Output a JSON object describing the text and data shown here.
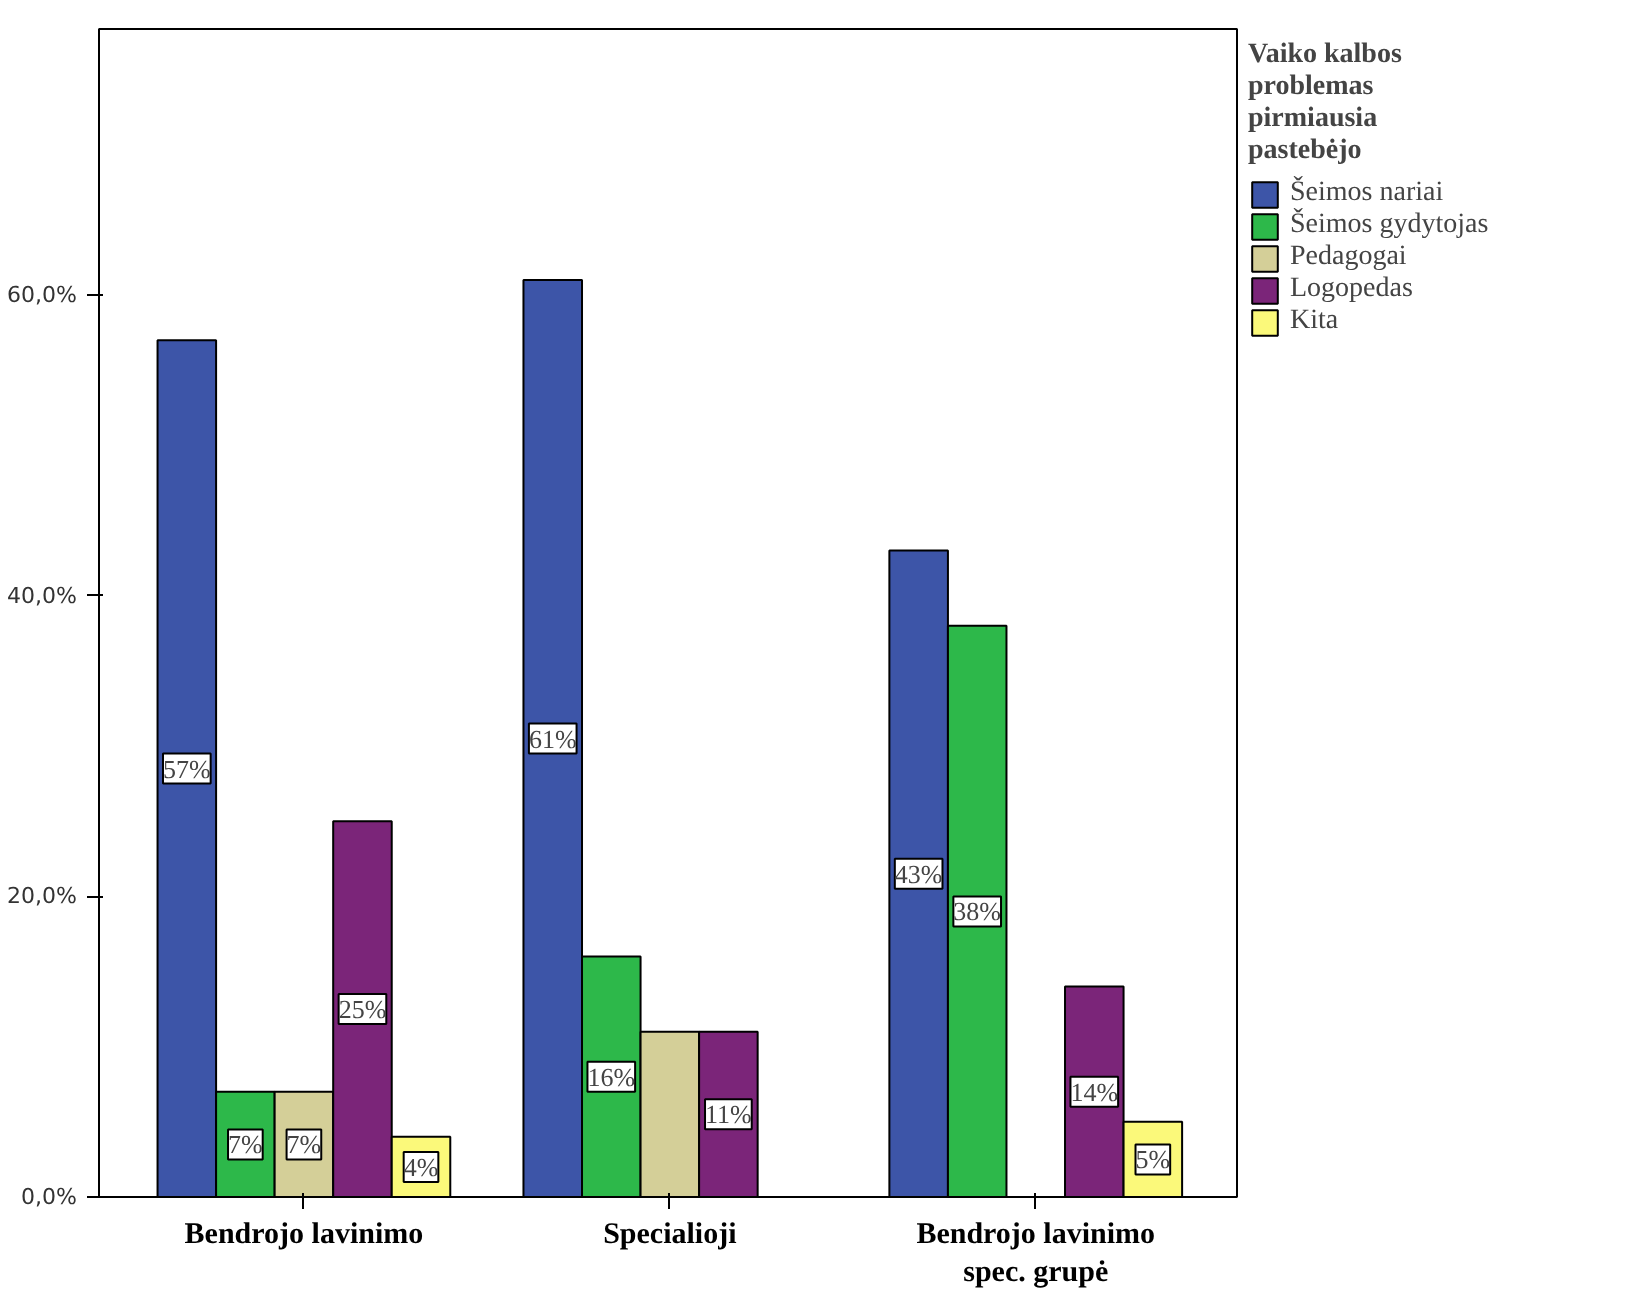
{
  "chart_data": {
    "type": "bar",
    "legend_title": "Vaiko kalbos problemas pirmiausia pastebėjo",
    "categories": [
      "Bendrojo lavinimo",
      "Specialioji",
      "Bendrojo lavinimo spec. grupė"
    ],
    "series": [
      {
        "name": "Šeimos nariai",
        "color": "#3d55a8",
        "values": [
          57,
          61,
          43
        ],
        "value_labels": [
          "57%",
          "61%",
          "43%"
        ]
      },
      {
        "name": "Šeimos gydytojas",
        "color": "#2db84a",
        "values": [
          7,
          16,
          38
        ],
        "value_labels": [
          "7%",
          "16%",
          "38%"
        ]
      },
      {
        "name": "Pedagogai",
        "color": "#d4cf98",
        "values": [
          7,
          11,
          null
        ],
        "value_labels": [
          "7%",
          null,
          null
        ]
      },
      {
        "name": "Logopedas",
        "color": "#7b2579",
        "values": [
          25,
          11,
          14
        ],
        "value_labels": [
          "25%",
          "11%",
          "14%"
        ]
      },
      {
        "name": "Kita",
        "color": "#fbf97a",
        "values": [
          4,
          null,
          5
        ],
        "value_labels": [
          "4%",
          null,
          "5%"
        ]
      }
    ],
    "ylim": [
      0,
      77.7
    ],
    "yticks": [
      {
        "value": 0,
        "label": "0,0%"
      },
      {
        "value": 20,
        "label": "20,0%"
      },
      {
        "value": 40,
        "label": "40,0%"
      },
      {
        "value": 60,
        "label": "60,0%"
      }
    ],
    "grid": false,
    "legend": "right"
  }
}
